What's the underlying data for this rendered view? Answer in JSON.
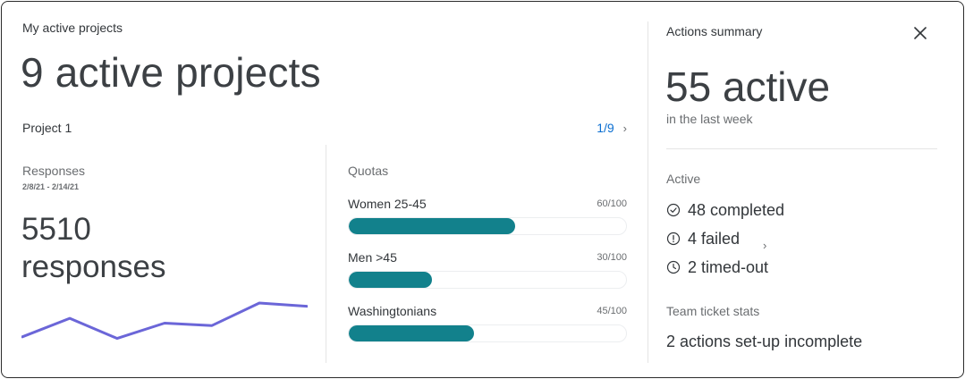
{
  "header": {
    "title": "My active projects",
    "headline": "9 active projects"
  },
  "project": {
    "name": "Project 1",
    "pager": "1/9"
  },
  "responses": {
    "label": "Responses",
    "date_range": "2/8/21 - 2/14/21",
    "count_line1": "5510",
    "count_line2": "responses",
    "sparkline": [
      8,
      31,
      6,
      25,
      22,
      50,
      46
    ],
    "line_color": "#6b66d8"
  },
  "quotas": {
    "title": "Quotas",
    "bar_color": "#12818c",
    "items": [
      {
        "name": "Women 25-45",
        "value": "60/100",
        "fraction": 0.6
      },
      {
        "name": "Men >45",
        "value": "30/100",
        "fraction": 0.3
      },
      {
        "name": "Washingtonians",
        "value": "45/100",
        "fraction": 0.45
      }
    ]
  },
  "summary": {
    "title": "Actions summary",
    "headline": "55 active",
    "subtitle": "in the last week",
    "active_label": "Active",
    "stats": [
      {
        "icon": "check-circle-icon",
        "text": "48 completed"
      },
      {
        "icon": "alert-circle-icon",
        "text": "4 failed"
      },
      {
        "icon": "clock-icon",
        "text": "2 timed-out"
      }
    ],
    "team_label": "Team ticket stats",
    "team_value": "2 actions set-up incomplete"
  },
  "icons": {
    "close": "close-icon",
    "pager_next": "chevron-right-icon",
    "stats_more": "chevron-right-icon"
  }
}
